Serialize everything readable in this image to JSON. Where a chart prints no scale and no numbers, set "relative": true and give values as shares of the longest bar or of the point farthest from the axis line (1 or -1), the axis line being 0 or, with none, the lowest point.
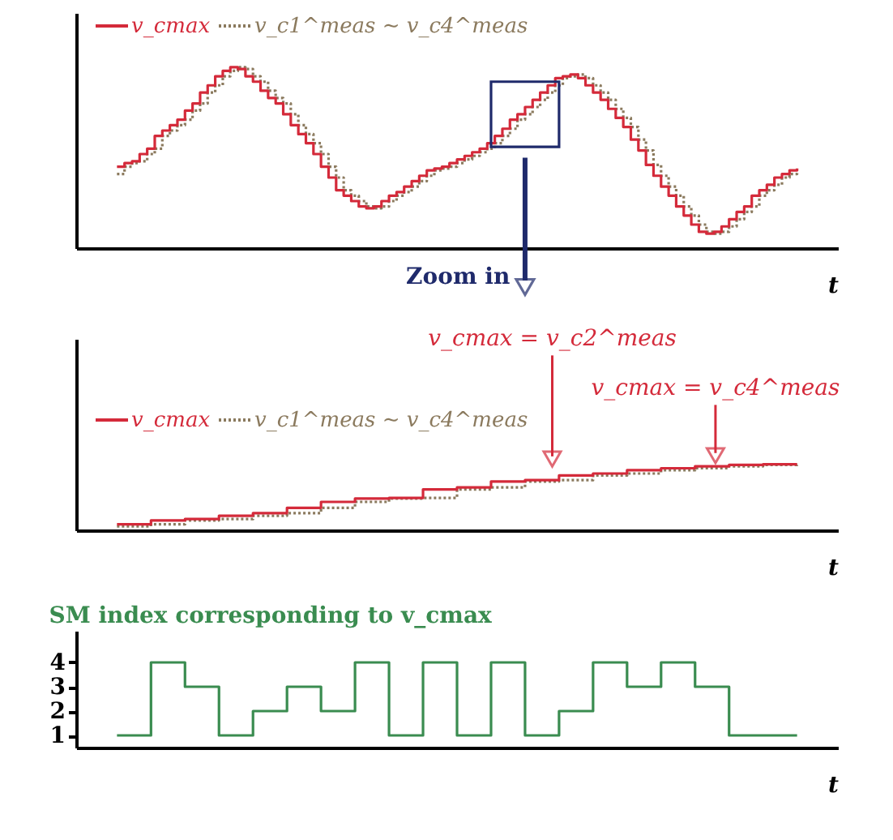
{
  "chart_data": [
    {
      "type": "step",
      "relative": true,
      "xlabel": "t",
      "legend": "top left",
      "tick_labels": false,
      "categories": [
        null,
        null,
        null,
        null,
        null,
        null,
        null,
        null,
        null,
        null,
        null,
        null,
        null,
        null,
        null,
        null,
        null,
        null,
        null,
        null,
        null,
        null,
        null,
        null,
        null,
        null,
        null,
        null,
        null,
        null,
        null,
        null,
        null,
        null,
        null,
        null,
        null,
        null,
        null,
        null,
        null,
        null,
        null,
        null,
        null,
        null,
        null,
        null,
        null,
        null,
        null,
        null,
        null,
        null,
        null,
        null,
        null,
        null,
        null,
        null,
        null,
        null,
        null,
        null,
        null,
        null,
        null,
        null,
        null,
        null,
        null,
        null,
        null,
        null,
        null,
        null,
        null,
        null,
        null,
        null,
        null,
        null,
        null,
        null,
        null,
        null,
        null,
        null,
        null,
        null,
        null
      ],
      "annotations": [
        "Zoom in"
      ],
      "series": [
        {
          "name": "v_c1^meas ∼ v_c4^meas",
          "color": "#8b7a5e",
          "line_style": "dotted",
          "values": [
            0.41,
            0.45,
            0.47,
            0.48,
            0.52,
            0.55,
            0.62,
            0.65,
            0.68,
            0.71,
            0.76,
            0.8,
            0.86,
            0.9,
            0.95,
            0.98,
            1.0,
            0.99,
            0.95,
            0.92,
            0.87,
            0.83,
            0.8,
            0.74,
            0.68,
            0.63,
            0.58,
            0.52,
            0.45,
            0.39,
            0.32,
            0.29,
            0.26,
            0.23,
            0.22,
            0.23,
            0.26,
            0.29,
            0.31,
            0.34,
            0.37,
            0.4,
            0.43,
            0.44,
            0.45,
            0.47,
            0.49,
            0.51,
            0.53,
            0.55,
            0.58,
            0.62,
            0.66,
            0.71,
            0.74,
            0.78,
            0.82,
            0.86,
            0.9,
            0.94,
            0.95,
            0.96,
            0.94,
            0.9,
            0.86,
            0.82,
            0.77,
            0.72,
            0.67,
            0.6,
            0.54,
            0.46,
            0.4,
            0.34,
            0.29,
            0.23,
            0.18,
            0.13,
            0.09,
            0.08,
            0.09,
            0.12,
            0.16,
            0.2,
            0.23,
            0.29,
            0.32,
            0.35,
            0.39,
            0.41,
            0.43
          ]
        },
        {
          "name": "v_cmax",
          "color": "#d42a3a",
          "line_style": "solid",
          "values": [
            0.45,
            0.47,
            0.48,
            0.52,
            0.55,
            0.62,
            0.65,
            0.68,
            0.71,
            0.76,
            0.8,
            0.86,
            0.9,
            0.95,
            0.98,
            1.0,
            0.99,
            0.95,
            0.92,
            0.87,
            0.83,
            0.8,
            0.74,
            0.68,
            0.63,
            0.58,
            0.52,
            0.45,
            0.39,
            0.32,
            0.29,
            0.26,
            0.23,
            0.22,
            0.23,
            0.26,
            0.29,
            0.31,
            0.34,
            0.37,
            0.4,
            0.43,
            0.44,
            0.45,
            0.47,
            0.49,
            0.51,
            0.53,
            0.55,
            0.58,
            0.62,
            0.66,
            0.71,
            0.74,
            0.78,
            0.82,
            0.86,
            0.9,
            0.94,
            0.95,
            0.96,
            0.94,
            0.9,
            0.86,
            0.82,
            0.77,
            0.72,
            0.67,
            0.6,
            0.54,
            0.46,
            0.4,
            0.34,
            0.29,
            0.23,
            0.18,
            0.13,
            0.09,
            0.08,
            0.09,
            0.12,
            0.16,
            0.2,
            0.23,
            0.29,
            0.32,
            0.35,
            0.39,
            0.41,
            0.43,
            0.44
          ]
        }
      ]
    },
    {
      "type": "step",
      "relative": true,
      "xlabel": "t",
      "legend": "top left",
      "tick_labels": false,
      "categories": [
        null,
        null,
        null,
        null,
        null,
        null,
        null,
        null,
        null,
        null,
        null,
        null,
        null,
        null,
        null,
        null,
        null,
        null,
        null,
        null,
        null
      ],
      "annotations": [
        "v_cmax = v_c2^meas",
        "v_cmax = v_c4^meas"
      ],
      "series": [
        {
          "name": "v_c1^meas ∼ v_c4^meas",
          "color": "#8b7a5e",
          "line_style": "dotted",
          "values": [
            0.06,
            0.09,
            0.15,
            0.17,
            0.22,
            0.26,
            0.34,
            0.43,
            0.48,
            0.49,
            0.62,
            0.65,
            0.74,
            0.76,
            0.83,
            0.86,
            0.91,
            0.94,
            0.97,
            0.99,
            1.0
          ]
        },
        {
          "name": "v_cmax",
          "color": "#d42a3a",
          "line_style": "solid",
          "values": [
            0.09,
            0.15,
            0.17,
            0.22,
            0.26,
            0.34,
            0.43,
            0.48,
            0.49,
            0.62,
            0.65,
            0.74,
            0.76,
            0.83,
            0.86,
            0.91,
            0.94,
            0.97,
            0.99,
            1.0,
            1.0
          ]
        }
      ]
    },
    {
      "type": "step",
      "title": "SM index corresponding to v_cmax",
      "xlabel": "t",
      "tick_labels": "y",
      "ylim": [
        0.5,
        5.3
      ],
      "yticks": [
        1,
        2,
        3,
        4
      ],
      "categories": [
        null,
        null,
        null,
        null,
        null,
        null,
        null,
        null,
        null,
        null,
        null,
        null,
        null,
        null,
        null,
        null,
        null,
        null,
        null,
        null,
        null
      ],
      "series": [
        {
          "color": "#3a8c50",
          "line_style": "solid",
          "values": [
            1,
            4,
            3,
            1,
            2,
            3,
            2,
            4,
            1,
            4,
            1,
            4,
            1,
            2,
            4,
            3,
            4,
            3,
            1,
            1,
            1
          ]
        }
      ]
    }
  ]
}
